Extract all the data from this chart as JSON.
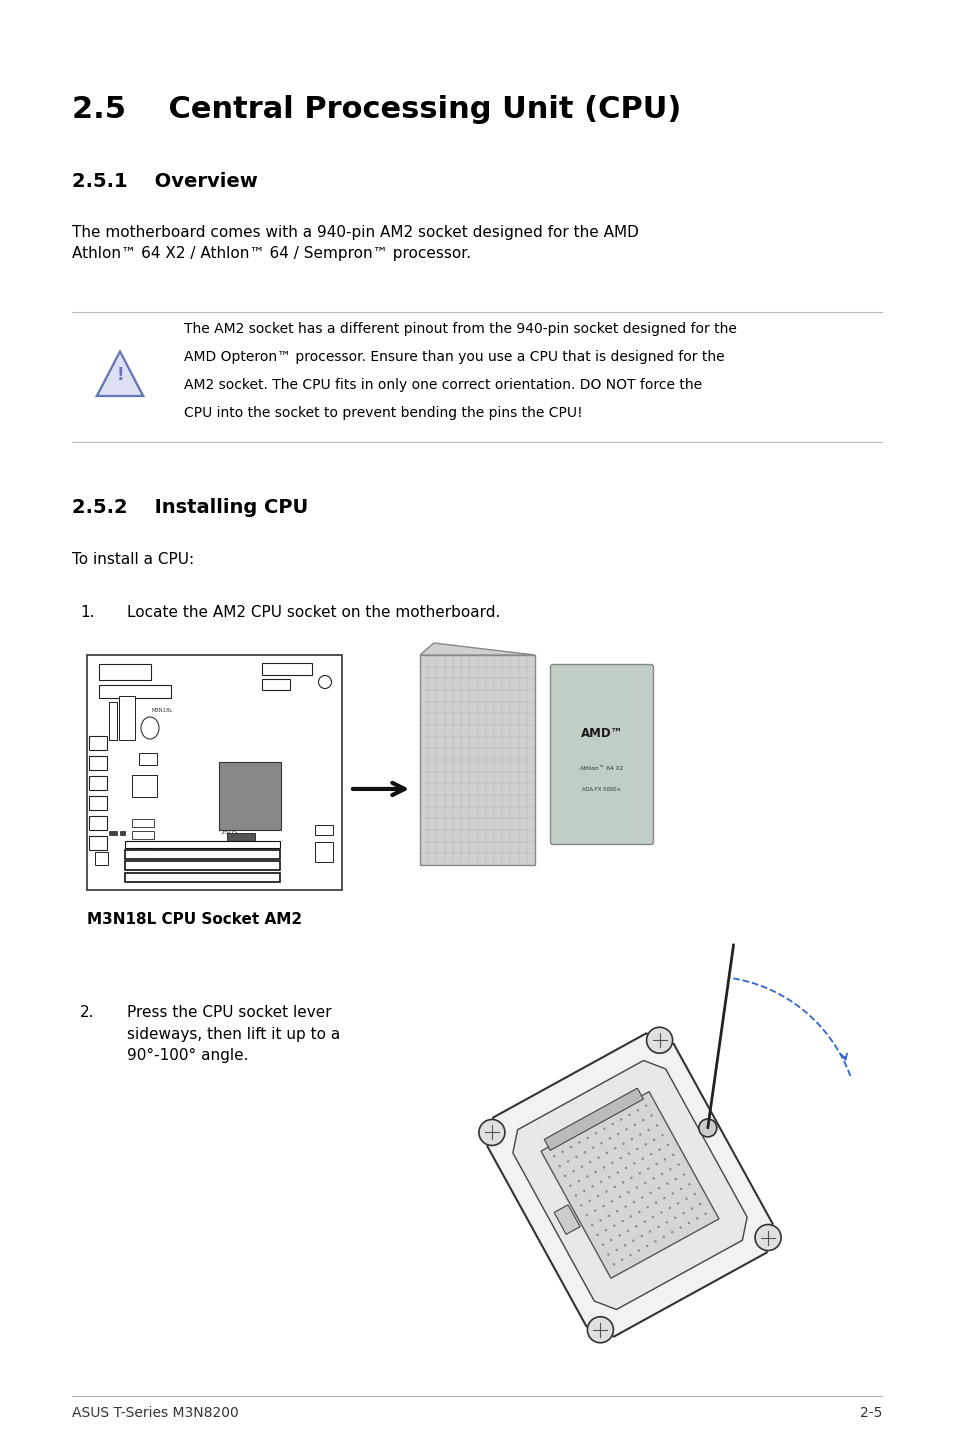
{
  "bg_color": "#ffffff",
  "title": "2.5    Central Processing Unit (CPU)",
  "title_fontsize": 22,
  "section1_heading": "2.5.1    Overview",
  "section1_heading_fontsize": 14,
  "section1_body": "The motherboard comes with a 940-pin AM2 socket designed for the AMD\nAthlon™ 64 X2 / Athlon™ 64 / Sempron™ processor.",
  "section1_body_fontsize": 11,
  "warning_text_line1": "The AM2 socket has a different pinout from the 940-pin socket designed for the",
  "warning_text_line2": "AMD Opteron™ processor. Ensure than you use a CPU that is designed for the",
  "warning_text_line3": "AM2 socket. The CPU fits in only one correct orientation. DO NOT force the",
  "warning_text_line4": "CPU into the socket to prevent bending the pins the CPU!",
  "warning_fontsize": 10,
  "section2_heading": "2.5.2    Installing CPU",
  "section2_heading_fontsize": 14,
  "section2_intro": "To install a CPU:",
  "section2_intro_fontsize": 11,
  "step1_text": "Locate the AM2 CPU socket on the motherboard.",
  "step1_fontsize": 11,
  "step2_text": "Press the CPU socket lever\nsideways, then lift it up to a\n90°-100° angle.",
  "step2_fontsize": 11,
  "caption": "M3N18L CPU Socket AM2",
  "caption_fontsize": 11,
  "footer_left": "ASUS T-Series M3N8200",
  "footer_right": "2-5",
  "footer_fontsize": 10
}
